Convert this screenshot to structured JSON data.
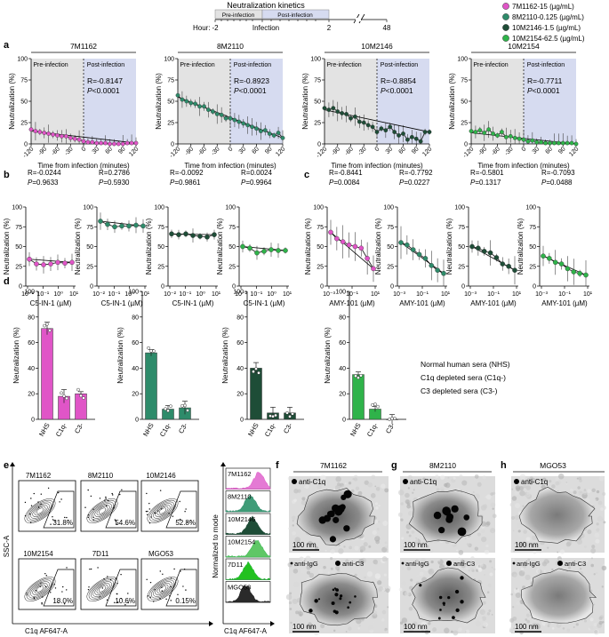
{
  "colors": {
    "magenta": "#e055c7",
    "teal": "#2e8b6a",
    "dark_green": "#1e4d37",
    "light_green": "#2fb34a",
    "pre_shade": "#e3e3e3",
    "post_shade": "#d6dbf0"
  },
  "legend": [
    {
      "label": "7M1162-15 (µg/mL)",
      "color": "#e055c7"
    },
    {
      "label": "8M2110-0.125 (µg/mL)",
      "color": "#2e8b6a"
    },
    {
      "label": "10M2146-1.5 (µg/mL)",
      "color": "#1e4d37"
    },
    {
      "label": "10M2154-62.5 (µg/mL)",
      "color": "#2fb34a"
    }
  ],
  "schematic": {
    "title": "Neutralization kinetics",
    "pre": "Pre-infection",
    "post": "Post-infection",
    "hour_label": "Hour:",
    "t_minus2": "-2",
    "infection": "Infection",
    "t2": "2",
    "t48": "48"
  },
  "panel_letters": [
    "a",
    "b",
    "c",
    "d",
    "e",
    "f",
    "g",
    "h"
  ],
  "panel_a": {
    "ylabel": "Neutralization (%)",
    "xlabel": "Time from infection (minutes)",
    "pre_label": "Pre-infection",
    "post_label": "Post-infection",
    "yticks": [
      "0",
      "25",
      "50",
      "75",
      "100"
    ],
    "xticks": [
      "-120",
      "-90",
      "-60",
      "-30",
      "0",
      "30",
      "60",
      "90",
      "120"
    ],
    "charts": [
      {
        "title": "7M1162",
        "r_text": "R=-0.8147",
        "p_text": "<0.0001",
        "color": "#e055c7"
      },
      {
        "title": "8M2110",
        "r_text": "R=-0.8923",
        "p_text": "<0.0001",
        "color": "#2e8b6a"
      },
      {
        "title": "10M2146",
        "r_text": "R=-0.8854",
        "p_text": "<0.0001",
        "color": "#1e4d37"
      },
      {
        "title": "10M2154",
        "r_text": "R=-0.7711",
        "p_text": "<0.0001",
        "color": "#2fb34a"
      }
    ]
  },
  "panel_b": {
    "ylabel": "Neutralization (%)",
    "xlabel": "C5-IN-1 (µM)",
    "yticks": [
      "0",
      "25",
      "50",
      "75",
      "100"
    ],
    "xticks": [
      "10⁻²",
      "10⁻¹",
      "10⁰",
      "10¹"
    ],
    "charts": [
      {
        "r_text": "R=-0.0244",
        "p_text": "=0.9633",
        "color": "#e055c7"
      },
      {
        "r_text": "R=0.2786",
        "p_text": "=0.5930",
        "color": "#2e8b6a"
      },
      {
        "r_text": "R=-0.0092",
        "p_text": "=0.9861",
        "color": "#1e4d37"
      },
      {
        "r_text": "R=0.0024",
        "p_text": "=0.9964",
        "color": "#2fb34a"
      }
    ]
  },
  "panel_c": {
    "ylabel": "Neutralization (%)",
    "xlabel": "AMY-101 (µM)",
    "yticks": [
      "0",
      "25",
      "50",
      "75",
      "100"
    ],
    "xticks": [
      "10⁻³",
      "10⁻¹",
      "10¹"
    ],
    "charts": [
      {
        "r_text": "R=-0.8441",
        "p_text": "=0.0084",
        "color": "#e055c7"
      },
      {
        "r_text": "R=-0.7792",
        "p_text": "=0.0227",
        "color": "#2e8b6a"
      },
      {
        "r_text": "R=-0.5801",
        "p_text": "=0.1317",
        "color": "#1e4d37"
      },
      {
        "r_text": "R=-0.7093",
        "p_text": "=0.0488",
        "color": "#2fb34a"
      }
    ]
  },
  "panel_d": {
    "ylabel": "Neutralization (%)",
    "yticks": [
      "0",
      "20",
      "40",
      "60",
      "80",
      "100"
    ],
    "categories": [
      "NHS",
      "C1q-",
      "C3-"
    ],
    "legend_text": [
      "Normal human sera (NHS)",
      "C1q depleted sera (C1q-)",
      "C3 depleted sera (C3-)"
    ]
  },
  "panel_e": {
    "gates": [
      {
        "label": "7M1162",
        "pct": "31.8%"
      },
      {
        "label": "8M2110",
        "pct": "54.6%"
      },
      {
        "label": "10M2146",
        "pct": "52.8%"
      },
      {
        "label": "10M2154",
        "pct": "18.0%"
      },
      {
        "label": "7D11",
        "pct": "10.6%"
      },
      {
        "label": "MGO53",
        "pct": "0.15%"
      }
    ],
    "y_axis": "SSC-A",
    "x_axis": "C1q AF647-A",
    "hist_y_axis": "Normalized to mode",
    "hist_x_axis": "C1q AF647-A",
    "hist_labels": [
      "7M1162",
      "8M2110",
      "10M2146",
      "10M2154",
      "7D11",
      "MGO53"
    ]
  },
  "panel_fgh": {
    "f_title": "7M1162",
    "g_title": "8M2110",
    "h_title": "MGO53",
    "anti_c1q": "anti-C1q",
    "anti_igg": "anti-IgG",
    "anti_c3": "anti-C3",
    "scale": "100 nm"
  },
  "chart_data": [
    {
      "type": "line",
      "panel": "a",
      "title": "Neutralization kinetics (7M1162, 8M2110, 10M2146, 10M2154)",
      "xlabel": "Time from infection (minutes)",
      "ylabel": "Neutralization (%)",
      "xlim": [
        -120,
        120
      ],
      "ylim": [
        0,
        100
      ],
      "x": [
        -120,
        -110,
        -100,
        -90,
        -80,
        -70,
        -60,
        -50,
        -40,
        -30,
        -20,
        -10,
        0,
        10,
        20,
        30,
        40,
        50,
        60,
        70,
        80,
        90,
        100,
        110,
        120
      ],
      "series": [
        {
          "name": "7M1162",
          "values": [
            17,
            15,
            14,
            13,
            12,
            11,
            10,
            9,
            9,
            7,
            6,
            5,
            3,
            2,
            2,
            1,
            1,
            1,
            0,
            0,
            0,
            0,
            1,
            1,
            1
          ]
        },
        {
          "name": "8M2110",
          "values": [
            57,
            52,
            50,
            48,
            47,
            44,
            44,
            40,
            38,
            35,
            34,
            30,
            30,
            28,
            26,
            24,
            22,
            20,
            18,
            15,
            16,
            12,
            10,
            13,
            7
          ]
        },
        {
          "name": "10M2146",
          "values": [
            42,
            40,
            42,
            38,
            36,
            35,
            30,
            32,
            26,
            25,
            22,
            20,
            14,
            18,
            16,
            20,
            14,
            10,
            12,
            5,
            8,
            6,
            3,
            14,
            14
          ]
        },
        {
          "name": "10M2154",
          "values": [
            15,
            14,
            16,
            13,
            17,
            12,
            10,
            14,
            8,
            9,
            7,
            6,
            5,
            3,
            4,
            2,
            2,
            1,
            1,
            1,
            1,
            1,
            1,
            1,
            0
          ]
        }
      ]
    },
    {
      "type": "line",
      "panel": "b",
      "xlabel": "C5-IN-1 (µM)",
      "ylabel": "Neutralization (%)",
      "x_log10": [
        -2,
        -1.5,
        -1,
        -0.5,
        0,
        0.5,
        1
      ],
      "ylim": [
        0,
        100
      ],
      "series": [
        {
          "name": "7M1162",
          "values": [
            34,
            28,
            27,
            28,
            30,
            29,
            30
          ]
        },
        {
          "name": "8M2110",
          "values": [
            82,
            78,
            75,
            76,
            76,
            77,
            76
          ]
        },
        {
          "name": "10M2146",
          "values": [
            66,
            65,
            66,
            64,
            63,
            62,
            65
          ]
        },
        {
          "name": "10M2154",
          "values": [
            50,
            48,
            42,
            44,
            46,
            45,
            45
          ]
        }
      ]
    },
    {
      "type": "line",
      "panel": "c",
      "xlabel": "AMY-101 (µM)",
      "ylabel": "Neutralization (%)",
      "x_log10": [
        -3,
        -2.5,
        -2,
        -1.5,
        -1,
        -0.5,
        0,
        0.5
      ],
      "ylim": [
        0,
        100
      ],
      "series": [
        {
          "name": "7M1162",
          "values": [
            68,
            60,
            56,
            52,
            50,
            48,
            35,
            22
          ]
        },
        {
          "name": "8M2110",
          "values": [
            55,
            52,
            46,
            40,
            35,
            26,
            20,
            16
          ]
        },
        {
          "name": "10M2146",
          "values": [
            50,
            48,
            44,
            42,
            36,
            28,
            25,
            20
          ]
        },
        {
          "name": "10M2154",
          "values": [
            38,
            35,
            30,
            28,
            22,
            18,
            16,
            14
          ]
        }
      ]
    },
    {
      "type": "bar",
      "panel": "d",
      "categories": [
        "NHS",
        "C1q-",
        "C3-"
      ],
      "ylabel": "Neutralization (%)",
      "ylim": [
        0,
        100
      ],
      "series": [
        {
          "name": "7M1162",
          "values": [
            71,
            18,
            20
          ]
        },
        {
          "name": "8M2110",
          "values": [
            52,
            8,
            9
          ]
        },
        {
          "name": "10M2146",
          "values": [
            40,
            5,
            5
          ]
        },
        {
          "name": "10M2154",
          "values": [
            35,
            8,
            0
          ]
        }
      ]
    }
  ]
}
